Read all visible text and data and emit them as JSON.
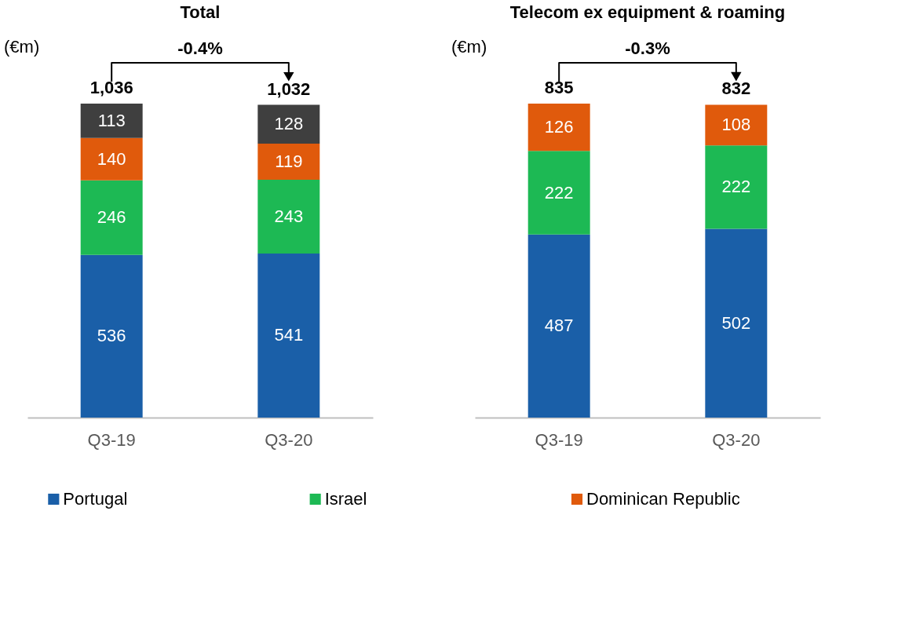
{
  "chart_data": [
    {
      "type": "bar",
      "title": "Total",
      "stacked": true,
      "data_labels": true,
      "legend": "bottom",
      "categories": [
        "Q3-19",
        "Q3-20"
      ],
      "series": [
        {
          "name": "Portugal",
          "color": "#1a5fa8",
          "values": [
            536,
            541
          ]
        },
        {
          "name": "Israel",
          "color": "#1db954",
          "values": [
            246,
            243
          ]
        },
        {
          "name": "Dominican Republic",
          "color": "#e05a0c",
          "values": [
            140,
            119
          ]
        },
        {
          "color": "#3f3f3f",
          "values": [
            113,
            128
          ]
        }
      ],
      "totals": [
        "1,036",
        "1,032"
      ],
      "annotations": [
        "(€m)",
        "-0.4%"
      ]
    },
    {
      "type": "bar",
      "title": "Telecom ex equipment & roaming",
      "stacked": true,
      "data_labels": true,
      "legend": "bottom",
      "categories": [
        "Q3-19",
        "Q3-20"
      ],
      "series": [
        {
          "name": "Portugal",
          "color": "#1a5fa8",
          "values": [
            487,
            502
          ]
        },
        {
          "name": "Israel",
          "color": "#1db954",
          "values": [
            222,
            222
          ]
        },
        {
          "name": "Dominican Republic",
          "color": "#e05a0c",
          "values": [
            126,
            108
          ]
        }
      ],
      "totals": [
        "835",
        "832"
      ],
      "annotations": [
        "(€m)",
        "-0.3%"
      ]
    }
  ]
}
